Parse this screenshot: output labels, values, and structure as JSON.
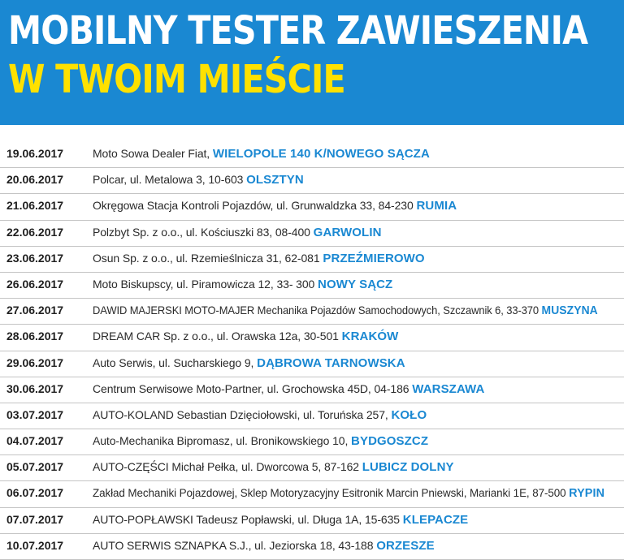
{
  "header": {
    "title_line1": "MOBILNY TESTER ZAWIESZENIA",
    "title_line2": "W TWOIM MIEŚCIE",
    "colors": {
      "background": "#1a88d2",
      "line1": "#ffffff",
      "line2": "#ffe100",
      "city": "#1a88d2"
    }
  },
  "schedule": [
    {
      "date": "19.06.2017",
      "address": "Moto Sowa Dealer Fiat,",
      "city": "WIELOPOLE 140 K/NOWEGO SĄCZA"
    },
    {
      "date": "20.06.2017",
      "address": "Polcar, ul. Metalowa 3, 10-603",
      "city": "OLSZTYN"
    },
    {
      "date": "21.06.2017",
      "address": "Okręgowa Stacja Kontroli Pojazdów, ul. Grunwaldzka 33, 84-230",
      "city": "RUMIA"
    },
    {
      "date": "22.06.2017",
      "address": "Polzbyt Sp. z o.o., ul. Kościuszki 83, 08-400",
      "city": "GARWOLIN"
    },
    {
      "date": "23.06.2017",
      "address": "Osun Sp. z o.o., ul. Rzemieślnicza 31, 62-081",
      "city": "PRZEŹMIEROWO"
    },
    {
      "date": "26.06.2017",
      "address": "Moto Biskupscy, ul. Piramowicza 12, 33- 300",
      "city": "NOWY SĄCZ"
    },
    {
      "date": "27.06.2017",
      "address": "DAWID MAJERSKI MOTO-MAJER Mechanika Pojazdów Samochodowych, Szczawnik 6, 33-370",
      "city": "MUSZYNA"
    },
    {
      "date": "28.06.2017",
      "address": "DREAM CAR Sp. z o.o., ul. Orawska 12a, 30-501",
      "city": "KRAKÓW"
    },
    {
      "date": "29.06.2017",
      "address": "Auto Serwis, ul. Sucharskiego 9,",
      "city": "DĄBROWA TARNOWSKA"
    },
    {
      "date": "30.06.2017",
      "address": "Centrum Serwisowe Moto-Partner, ul. Grochowska 45D, 04-186",
      "city": "WARSZAWA"
    },
    {
      "date": "03.07.2017",
      "address": "AUTO-KOLAND Sebastian Dzięciołowski, ul. Toruńska 257,",
      "city": "KOŁO"
    },
    {
      "date": "04.07.2017",
      "address": "Auto-Mechanika Bipromasz, ul. Bronikowskiego 10,",
      "city": "BYDGOSZCZ"
    },
    {
      "date": "05.07.2017",
      "address": "AUTO-CZĘŚCI Michał Pełka, ul. Dworcowa 5, 87-162",
      "city": "LUBICZ DOLNY"
    },
    {
      "date": "06.07.2017",
      "address": "Zakład Mechaniki Pojazdowej, Sklep Motoryzacyjny Esitronik Marcin Pniewski, Marianki 1E, 87-500",
      "city": "RYPIN"
    },
    {
      "date": "07.07.2017",
      "address": "AUTO-POPŁAWSKI Tadeusz Popławski, ul. Długa 1A, 15-635",
      "city": "KLEPACZE"
    },
    {
      "date": "10.07.2017",
      "address": "AUTO SERWIS SZNAPKA S.J., ul. Jeziorska 18, 43-188",
      "city": "ORZESZE"
    }
  ]
}
